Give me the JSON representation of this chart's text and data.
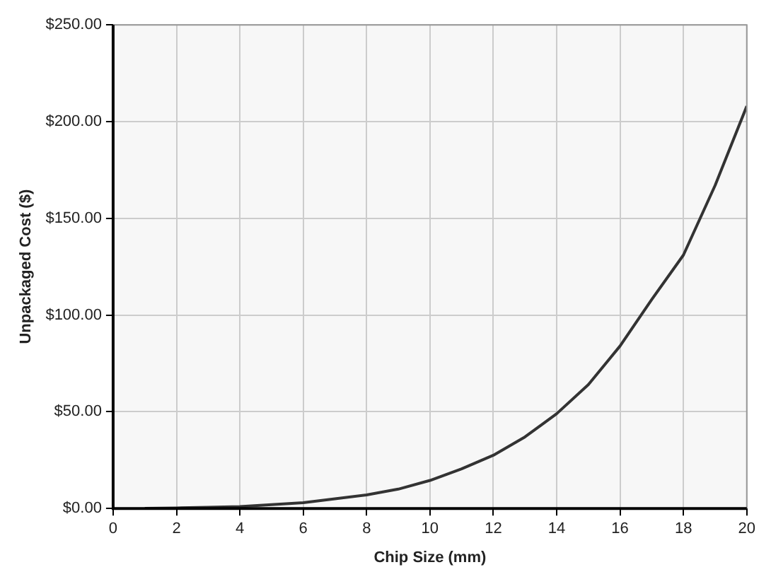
{
  "chart_data": {
    "type": "line",
    "xlabel": "Chip Size (mm)",
    "ylabel": "Unpackaged Cost ($)",
    "x": [
      1,
      2,
      3,
      4,
      5,
      6,
      7,
      8,
      9,
      10,
      11,
      12,
      13,
      14,
      15,
      16,
      17,
      18,
      19,
      20
    ],
    "series": [
      {
        "color": "#333333",
        "values": [
          0.1,
          0.3,
          0.6,
          1,
          2,
          3,
          5,
          7,
          10,
          14.5,
          20.5,
          27.5,
          37,
          49,
          64,
          84,
          108,
          131,
          167,
          208
        ]
      }
    ],
    "xlim": [
      0,
      20
    ],
    "xticks": [
      0,
      2,
      4,
      6,
      8,
      10,
      12,
      14,
      16,
      18,
      20
    ],
    "ylim": [
      0,
      250
    ],
    "yticks": [
      {
        "value": 0,
        "label": "$0.00"
      },
      {
        "value": 50,
        "label": "$50.00"
      },
      {
        "value": 100,
        "label": "$100.00"
      },
      {
        "value": 150,
        "label": "$150.00"
      },
      {
        "value": 200,
        "label": "$200.00"
      },
      {
        "value": 250,
        "label": "$250.00"
      }
    ],
    "grid": true,
    "legend": false,
    "marker": "none",
    "line_style": "solid"
  }
}
